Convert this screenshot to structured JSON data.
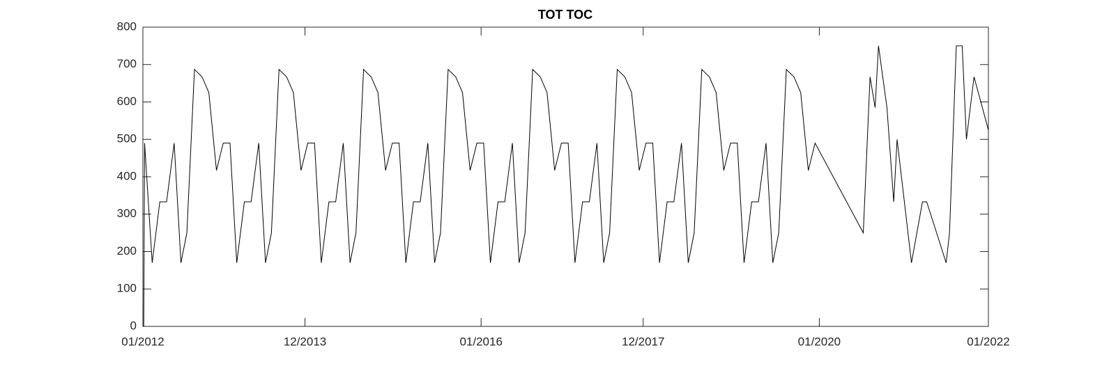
{
  "chart_data": {
    "type": "line",
    "title": "TOT TOC",
    "color": "#000000",
    "x": [
      2012.01,
      2012.02,
      2012.11,
      2012.2,
      2012.28,
      2012.37,
      2012.45,
      2012.52,
      2012.61,
      2012.7,
      2012.78,
      2012.87,
      2012.95,
      2013.03,
      2013.11,
      2013.2,
      2013.28,
      2013.37,
      2013.45,
      2013.52,
      2013.61,
      2013.7,
      2013.78,
      2013.87,
      2013.95,
      2014.03,
      2014.11,
      2014.2,
      2014.28,
      2014.37,
      2014.45,
      2014.52,
      2014.61,
      2014.7,
      2014.78,
      2014.87,
      2014.95,
      2015.03,
      2015.11,
      2015.2,
      2015.28,
      2015.37,
      2015.45,
      2015.52,
      2015.61,
      2015.7,
      2015.78,
      2015.87,
      2015.95,
      2016.03,
      2016.11,
      2016.2,
      2016.28,
      2016.37,
      2016.45,
      2016.52,
      2016.61,
      2016.7,
      2016.78,
      2016.87,
      2016.95,
      2017.03,
      2017.11,
      2017.2,
      2017.28,
      2017.37,
      2017.45,
      2017.52,
      2017.61,
      2017.7,
      2017.78,
      2017.87,
      2017.95,
      2018.03,
      2018.11,
      2018.2,
      2018.28,
      2018.37,
      2018.45,
      2018.52,
      2018.61,
      2018.7,
      2018.78,
      2018.87,
      2018.95,
      2019.03,
      2019.11,
      2019.2,
      2019.28,
      2019.37,
      2019.45,
      2019.52,
      2019.61,
      2019.7,
      2019.78,
      2019.87,
      2019.95,
      2020.52,
      2020.6,
      2020.66,
      2020.7,
      2020.8,
      2020.88,
      2020.92,
      2021.09,
      2021.22,
      2021.27,
      2021.5,
      2021.54,
      2021.62,
      2021.69,
      2021.74,
      2021.83,
      2022.0
    ],
    "values": [
      0,
      490,
      170,
      333,
      333,
      490,
      170,
      250,
      687,
      667,
      625,
      417,
      490,
      490,
      170,
      333,
      333,
      490,
      170,
      250,
      687,
      667,
      625,
      417,
      490,
      490,
      170,
      333,
      333,
      490,
      170,
      250,
      687,
      667,
      625,
      417,
      490,
      490,
      170,
      333,
      333,
      490,
      170,
      250,
      687,
      667,
      625,
      417,
      490,
      490,
      170,
      333,
      333,
      490,
      170,
      250,
      687,
      667,
      625,
      417,
      490,
      490,
      170,
      333,
      333,
      490,
      170,
      250,
      687,
      667,
      625,
      417,
      490,
      490,
      170,
      333,
      333,
      490,
      170,
      250,
      687,
      667,
      625,
      417,
      490,
      490,
      170,
      333,
      333,
      490,
      170,
      250,
      687,
      667,
      625,
      417,
      490,
      250,
      667,
      585,
      750,
      585,
      333,
      500,
      170,
      333,
      333,
      170,
      250,
      750,
      750,
      500,
      667,
      525
    ],
    "xlim": [
      2012.0,
      2022.0
    ],
    "xticks": [
      {
        "value": 2012.0,
        "label": "01/2012"
      },
      {
        "value": 2013.917,
        "label": "12/2013"
      },
      {
        "value": 2016.0,
        "label": "01/2016"
      },
      {
        "value": 2017.917,
        "label": "12/2017"
      },
      {
        "value": 2020.0,
        "label": "01/2020"
      },
      {
        "value": 2022.0,
        "label": "01/2022"
      }
    ],
    "ylim": [
      0,
      800
    ],
    "yticks": [
      0,
      100,
      200,
      300,
      400,
      500,
      600,
      700,
      800
    ]
  }
}
